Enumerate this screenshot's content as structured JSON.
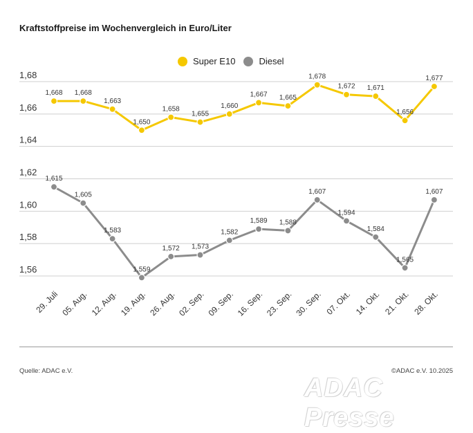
{
  "title": "Kraftstoffpreise im Wochenvergleich in Euro/Liter",
  "legend": {
    "items": [
      {
        "label": "Super E10",
        "color": "#f5c800"
      },
      {
        "label": "Diesel",
        "color": "#8c8c8c"
      }
    ]
  },
  "footer": {
    "source": "Quelle: ADAC e.V.",
    "copyright": "©ADAC e.V. 10.2025",
    "watermark": "ADAC Presse"
  },
  "chart_data": {
    "type": "line",
    "title": "Kraftstoffpreise im Wochenvergleich in Euro/Liter",
    "xlabel": "",
    "ylabel": "",
    "categories": [
      "29. Juli",
      "05. Aug.",
      "12. Aug.",
      "19. Aug.",
      "26. Aug.",
      "02. Sep.",
      "09. Sep.",
      "16. Sep.",
      "23. Sep.",
      "30. Sep.",
      "07. Okt.",
      "14. Okt.",
      "21. Okt.",
      "28. Okt."
    ],
    "y_ticks": [
      1.56,
      1.58,
      1.6,
      1.62,
      1.64,
      1.66,
      1.68
    ],
    "y_tick_labels": [
      "1,56",
      "1,58",
      "1,60",
      "1,62",
      "1,64",
      "1,66",
      "1,68"
    ],
    "ylim": [
      1.56,
      1.68
    ],
    "grid": true,
    "legend_position": "top-center",
    "series": [
      {
        "name": "Super E10",
        "color": "#f5c800",
        "values": [
          1.668,
          1.668,
          1.663,
          1.65,
          1.658,
          1.655,
          1.66,
          1.667,
          1.665,
          1.678,
          1.672,
          1.671,
          1.656,
          1.677
        ],
        "labels": [
          "1,668",
          "1,668",
          "1,663",
          "1,650",
          "1,658",
          "1,655",
          "1,660",
          "1,667",
          "1,665",
          "1,678",
          "1,672",
          "1,671",
          "1,656",
          "1,677"
        ]
      },
      {
        "name": "Diesel",
        "color": "#8c8c8c",
        "values": [
          1.615,
          1.605,
          1.583,
          1.559,
          1.572,
          1.573,
          1.582,
          1.589,
          1.588,
          1.607,
          1.594,
          1.584,
          1.565,
          1.607
        ],
        "labels": [
          "1,615",
          "1,605",
          "1,583",
          "1,559",
          "1,572",
          "1,573",
          "1,582",
          "1,589",
          "1,588",
          "1,607",
          "1,594",
          "1,584",
          "1,565",
          "1,607"
        ]
      }
    ]
  }
}
